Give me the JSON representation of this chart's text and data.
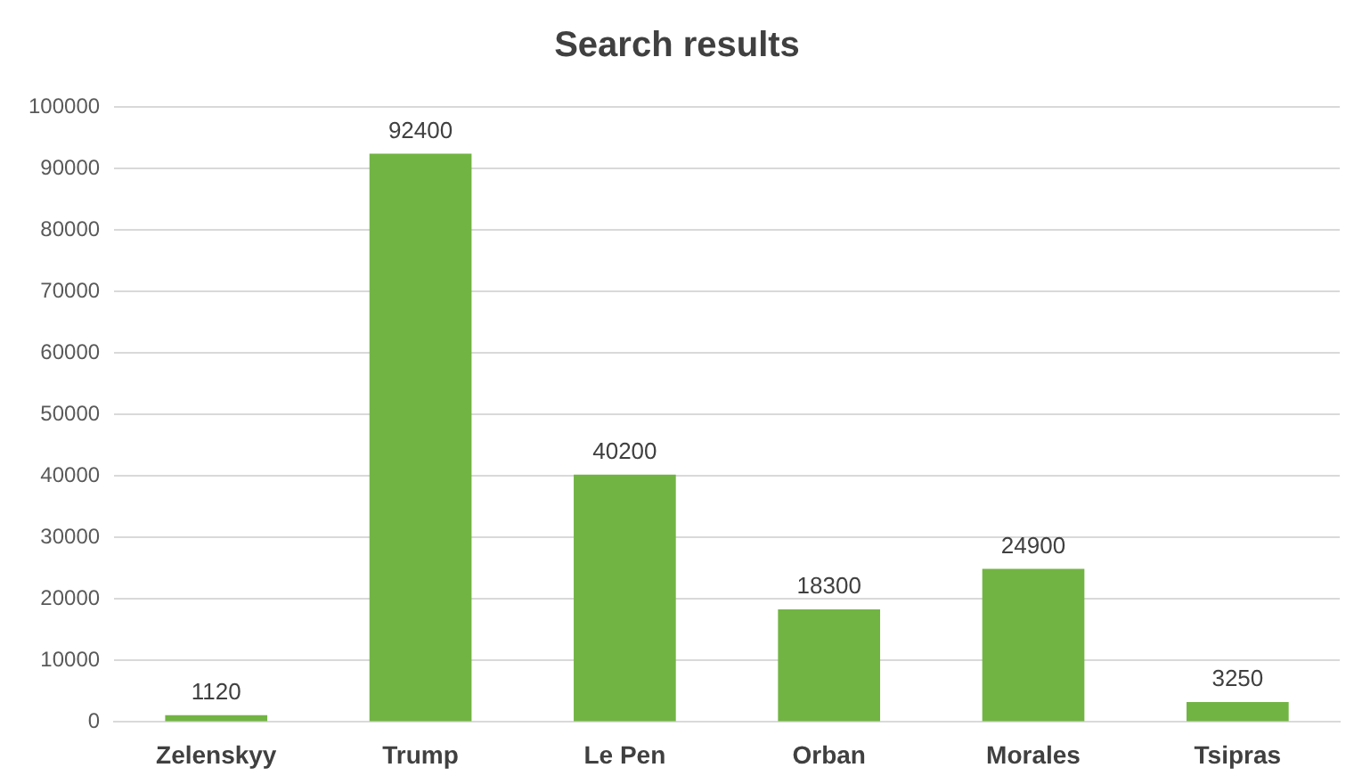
{
  "chart_data": {
    "type": "bar",
    "title": "Search results",
    "categories": [
      "Zelenskyy",
      "Trump",
      "Le Pen",
      "Orban",
      "Morales",
      "Tsipras"
    ],
    "values": [
      1120,
      92400,
      40200,
      18300,
      24900,
      3250
    ],
    "color": "#72b443",
    "ylim": [
      0,
      100000
    ],
    "yticks": [
      0,
      10000,
      20000,
      30000,
      40000,
      50000,
      60000,
      70000,
      80000,
      90000,
      100000
    ],
    "grid": "y",
    "data_labels": true,
    "legend": false
  }
}
